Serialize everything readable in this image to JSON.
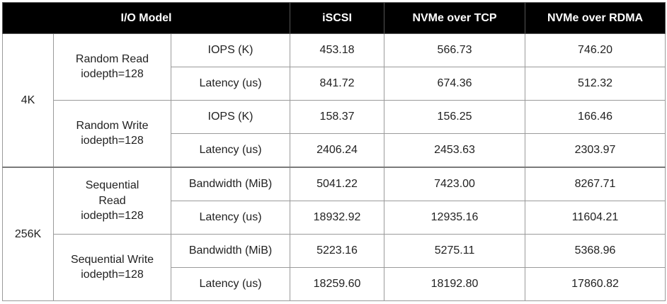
{
  "header": {
    "io_model": "I/O Model",
    "iscsi": "iSCSI",
    "nvme_tcp": "NVMe over TCP",
    "nvme_rdma": "NVMe over RDMA"
  },
  "rows": [
    {
      "block": "4K",
      "workload": [
        "Random Read",
        "iodepth=128"
      ],
      "metric": "IOPS (K)",
      "iscsi": "453.18",
      "tcp": "566.73",
      "rdma": "746.20"
    },
    {
      "metric": "Latency (us)",
      "iscsi": "841.72",
      "tcp": "674.36",
      "rdma": "512.32"
    },
    {
      "workload": [
        "Random Write",
        "iodepth=128"
      ],
      "metric": "IOPS (K)",
      "iscsi": "158.37",
      "tcp": "156.25",
      "rdma": "166.46"
    },
    {
      "metric": "Latency (us)",
      "iscsi": "2406.24",
      "tcp": "2453.63",
      "rdma": "2303.97"
    },
    {
      "block": "256K",
      "workload": [
        "Sequential",
        "Read",
        "iodepth=128"
      ],
      "metric": "Bandwidth (MiB)",
      "iscsi": "5041.22",
      "tcp": "7423.00",
      "rdma": "8267.71"
    },
    {
      "metric": "Latency (us)",
      "iscsi": "18932.92",
      "tcp": "12935.16",
      "rdma": "11604.21"
    },
    {
      "workload": [
        "Sequential Write",
        "iodepth=128"
      ],
      "metric": "Bandwidth (MiB)",
      "iscsi": "5223.16",
      "tcp": "5275.11",
      "rdma": "5368.96"
    },
    {
      "metric": "Latency (us)",
      "iscsi": "18259.60",
      "tcp": "18192.80",
      "rdma": "17860.82"
    }
  ]
}
